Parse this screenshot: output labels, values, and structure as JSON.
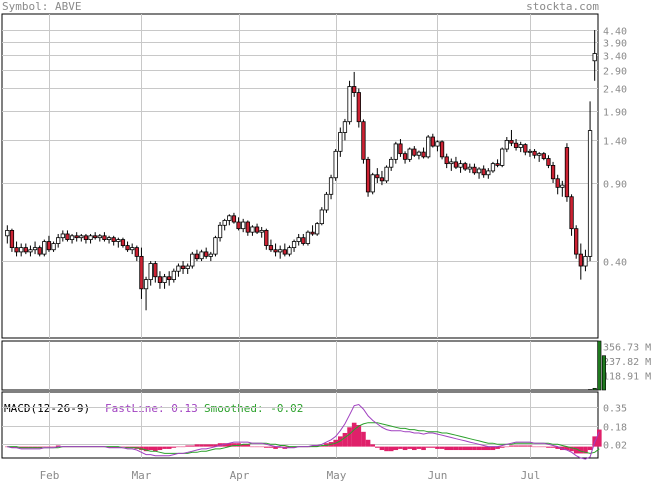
{
  "header": {
    "symbol_text": "Symbol: ABVE",
    "site": "stockta.com"
  },
  "macd_legend": {
    "title": "MACD(12-26-9)",
    "fast": "FastLine: 0.13",
    "smoothed": "Smoothed: -0.02"
  },
  "colors": {
    "up": "#ffffff",
    "down": "#cc2233",
    "wick": "#000000",
    "grid": "#c8c8c8",
    "volume": "#1f7a1f",
    "fast": "#a040c0",
    "smooth": "#2aa02a",
    "hist": "#e0206a"
  },
  "chart_data": [
    {
      "type": "candlestick",
      "scale": "log",
      "ylim": [
        0.18,
        5.2
      ],
      "yticks": [
        "4.40",
        "3.90",
        "3.40",
        "2.90",
        "2.40",
        "1.90",
        "1.40",
        "0.90",
        "0.40"
      ],
      "ytick_values": [
        4.4,
        3.9,
        3.4,
        2.9,
        2.4,
        1.9,
        1.4,
        0.9,
        0.4
      ],
      "xticks": [
        "Feb",
        "Mar",
        "Apr",
        "May",
        "Jun",
        "Jul"
      ],
      "xtick_index": [
        9,
        29,
        50,
        71,
        93,
        113
      ],
      "ohlc": [
        [
          0.52,
          0.58,
          0.48,
          0.55
        ],
        [
          0.55,
          0.56,
          0.44,
          0.46
        ],
        [
          0.46,
          0.49,
          0.42,
          0.44
        ],
        [
          0.44,
          0.48,
          0.42,
          0.46
        ],
        [
          0.46,
          0.48,
          0.43,
          0.44
        ],
        [
          0.44,
          0.47,
          0.42,
          0.45
        ],
        [
          0.45,
          0.49,
          0.43,
          0.46
        ],
        [
          0.46,
          0.47,
          0.42,
          0.43
        ],
        [
          0.43,
          0.5,
          0.42,
          0.49
        ],
        [
          0.49,
          0.52,
          0.44,
          0.45
        ],
        [
          0.45,
          0.49,
          0.44,
          0.48
        ],
        [
          0.48,
          0.53,
          0.46,
          0.51
        ],
        [
          0.51,
          0.55,
          0.49,
          0.53
        ],
        [
          0.53,
          0.55,
          0.49,
          0.5
        ],
        [
          0.5,
          0.53,
          0.48,
          0.52
        ],
        [
          0.52,
          0.54,
          0.49,
          0.51
        ],
        [
          0.51,
          0.53,
          0.49,
          0.52
        ],
        [
          0.52,
          0.53,
          0.48,
          0.5
        ],
        [
          0.5,
          0.53,
          0.48,
          0.52
        ],
        [
          0.52,
          0.54,
          0.5,
          0.51
        ],
        [
          0.51,
          0.53,
          0.49,
          0.52
        ],
        [
          0.52,
          0.54,
          0.49,
          0.5
        ],
        [
          0.5,
          0.52,
          0.48,
          0.51
        ],
        [
          0.51,
          0.52,
          0.47,
          0.49
        ],
        [
          0.49,
          0.51,
          0.46,
          0.5
        ],
        [
          0.5,
          0.51,
          0.46,
          0.47
        ],
        [
          0.47,
          0.49,
          0.44,
          0.45
        ],
        [
          0.45,
          0.48,
          0.43,
          0.46
        ],
        [
          0.46,
          0.47,
          0.4,
          0.42
        ],
        [
          0.42,
          0.46,
          0.27,
          0.3
        ],
        [
          0.3,
          0.34,
          0.24,
          0.33
        ],
        [
          0.33,
          0.4,
          0.31,
          0.39
        ],
        [
          0.39,
          0.4,
          0.32,
          0.34
        ],
        [
          0.34,
          0.36,
          0.3,
          0.32
        ],
        [
          0.32,
          0.35,
          0.3,
          0.34
        ],
        [
          0.34,
          0.36,
          0.31,
          0.33
        ],
        [
          0.33,
          0.37,
          0.32,
          0.36
        ],
        [
          0.36,
          0.39,
          0.34,
          0.38
        ],
        [
          0.38,
          0.4,
          0.35,
          0.37
        ],
        [
          0.37,
          0.39,
          0.35,
          0.38
        ],
        [
          0.38,
          0.44,
          0.37,
          0.43
        ],
        [
          0.43,
          0.45,
          0.4,
          0.41
        ],
        [
          0.41,
          0.45,
          0.4,
          0.44
        ],
        [
          0.44,
          0.46,
          0.41,
          0.42
        ],
        [
          0.42,
          0.44,
          0.4,
          0.43
        ],
        [
          0.43,
          0.52,
          0.42,
          0.51
        ],
        [
          0.51,
          0.6,
          0.49,
          0.58
        ],
        [
          0.58,
          0.62,
          0.55,
          0.61
        ],
        [
          0.61,
          0.65,
          0.58,
          0.64
        ],
        [
          0.64,
          0.66,
          0.59,
          0.6
        ],
        [
          0.6,
          0.63,
          0.55,
          0.56
        ],
        [
          0.56,
          0.62,
          0.54,
          0.6
        ],
        [
          0.6,
          0.61,
          0.52,
          0.54
        ],
        [
          0.54,
          0.58,
          0.52,
          0.57
        ],
        [
          0.57,
          0.59,
          0.53,
          0.54
        ],
        [
          0.54,
          0.57,
          0.51,
          0.55
        ],
        [
          0.55,
          0.56,
          0.45,
          0.47
        ],
        [
          0.47,
          0.5,
          0.44,
          0.45
        ],
        [
          0.45,
          0.48,
          0.42,
          0.44
        ],
        [
          0.44,
          0.47,
          0.41,
          0.45
        ],
        [
          0.45,
          0.48,
          0.42,
          0.43
        ],
        [
          0.43,
          0.47,
          0.42,
          0.46
        ],
        [
          0.46,
          0.5,
          0.44,
          0.49
        ],
        [
          0.49,
          0.53,
          0.47,
          0.51
        ],
        [
          0.51,
          0.53,
          0.47,
          0.48
        ],
        [
          0.48,
          0.55,
          0.47,
          0.54
        ],
        [
          0.54,
          0.58,
          0.52,
          0.53
        ],
        [
          0.53,
          0.6,
          0.52,
          0.59
        ],
        [
          0.59,
          0.7,
          0.58,
          0.68
        ],
        [
          0.68,
          0.82,
          0.66,
          0.8
        ],
        [
          0.8,
          0.98,
          0.76,
          0.95
        ],
        [
          0.95,
          1.28,
          0.92,
          1.25
        ],
        [
          1.25,
          1.6,
          1.18,
          1.52
        ],
        [
          1.52,
          1.75,
          1.4,
          1.7
        ],
        [
          1.7,
          2.6,
          1.65,
          2.45
        ],
        [
          2.45,
          2.85,
          2.2,
          2.3
        ],
        [
          2.3,
          2.4,
          1.6,
          1.7
        ],
        [
          1.7,
          1.74,
          1.1,
          1.15
        ],
        [
          1.15,
          1.18,
          0.78,
          0.82
        ],
        [
          0.82,
          1.0,
          0.8,
          0.98
        ],
        [
          0.98,
          1.05,
          0.9,
          0.95
        ],
        [
          0.95,
          1.02,
          0.88,
          0.92
        ],
        [
          0.92,
          1.08,
          0.9,
          1.06
        ],
        [
          1.06,
          1.18,
          1.02,
          1.15
        ],
        [
          1.15,
          1.38,
          1.1,
          1.35
        ],
        [
          1.35,
          1.42,
          1.18,
          1.22
        ],
        [
          1.22,
          1.25,
          1.1,
          1.15
        ],
        [
          1.15,
          1.3,
          1.12,
          1.28
        ],
        [
          1.28,
          1.32,
          1.18,
          1.2
        ],
        [
          1.2,
          1.26,
          1.15,
          1.24
        ],
        [
          1.24,
          1.3,
          1.16,
          1.18
        ],
        [
          1.18,
          1.48,
          1.16,
          1.45
        ],
        [
          1.45,
          1.5,
          1.3,
          1.32
        ],
        [
          1.32,
          1.4,
          1.25,
          1.38
        ],
        [
          1.38,
          1.4,
          1.15,
          1.18
        ],
        [
          1.18,
          1.22,
          1.05,
          1.1
        ],
        [
          1.1,
          1.16,
          1.02,
          1.12
        ],
        [
          1.12,
          1.18,
          1.04,
          1.06
        ],
        [
          1.06,
          1.14,
          1.0,
          1.1
        ],
        [
          1.1,
          1.12,
          1.02,
          1.04
        ],
        [
          1.04,
          1.1,
          1.0,
          1.06
        ],
        [
          1.06,
          1.1,
          0.98,
          1.0
        ],
        [
          1.0,
          1.06,
          0.94,
          1.04
        ],
        [
          1.04,
          1.08,
          0.95,
          0.98
        ],
        [
          0.98,
          1.05,
          0.94,
          1.02
        ],
        [
          1.02,
          1.12,
          1.0,
          1.1
        ],
        [
          1.1,
          1.15,
          1.06,
          1.08
        ],
        [
          1.08,
          1.3,
          1.06,
          1.28
        ],
        [
          1.28,
          1.45,
          1.24,
          1.4
        ],
        [
          1.4,
          1.56,
          1.32,
          1.36
        ],
        [
          1.36,
          1.42,
          1.26,
          1.3
        ],
        [
          1.3,
          1.38,
          1.24,
          1.34
        ],
        [
          1.34,
          1.36,
          1.2,
          1.24
        ],
        [
          1.24,
          1.28,
          1.18,
          1.25
        ],
        [
          1.25,
          1.28,
          1.16,
          1.2
        ],
        [
          1.2,
          1.24,
          1.12,
          1.22
        ],
        [
          1.22,
          1.24,
          1.14,
          1.16
        ],
        [
          1.16,
          1.2,
          1.05,
          1.08
        ],
        [
          1.08,
          1.12,
          0.9,
          0.94
        ],
        [
          0.94,
          0.98,
          0.8,
          0.86
        ],
        [
          0.86,
          0.92,
          0.78,
          0.88
        ],
        [
          1.3,
          1.36,
          0.74,
          0.78
        ],
        [
          0.78,
          0.8,
          0.52,
          0.56
        ],
        [
          0.56,
          0.58,
          0.41,
          0.43
        ],
        [
          0.43,
          0.48,
          0.33,
          0.38
        ],
        [
          0.38,
          0.45,
          0.36,
          0.42
        ],
        [
          0.42,
          2.1,
          0.4,
          1.55
        ],
        [
          3.2,
          4.4,
          2.6,
          3.45
        ]
      ]
    },
    {
      "type": "bar",
      "name_text": "volume",
      "yticks": [
        "356.73 M",
        "237.82 M",
        "118.91 M"
      ],
      "ytick_values": [
        356.73,
        237.82,
        118.91
      ],
      "ylim": [
        0,
        400
      ],
      "spikes": [
        [
          126,
          4
        ],
        [
          127,
          14
        ],
        [
          128,
          400
        ],
        [
          129,
          280
        ]
      ]
    },
    {
      "type": "line",
      "yticks": [
        "0.35",
        "0.18",
        "0.02"
      ],
      "ytick_values": [
        0.35,
        0.18,
        0.02
      ],
      "ylim": [
        -0.1,
        0.48
      ],
      "fast": [
        0,
        -0.01,
        -0.01,
        -0.02,
        -0.02,
        -0.02,
        -0.02,
        -0.02,
        -0.01,
        -0.01,
        -0.01,
        0,
        0,
        0,
        0,
        0,
        0,
        0,
        0,
        0,
        0,
        0,
        -0.01,
        -0.01,
        -0.01,
        -0.01,
        -0.02,
        -0.02,
        -0.03,
        -0.05,
        -0.07,
        -0.07,
        -0.08,
        -0.08,
        -0.08,
        -0.08,
        -0.07,
        -0.06,
        -0.06,
        -0.05,
        -0.04,
        -0.03,
        -0.02,
        -0.02,
        -0.01,
        0,
        0.01,
        0.02,
        0.03,
        0.04,
        0.04,
        0.04,
        0.04,
        0.03,
        0.03,
        0.03,
        0.02,
        0.01,
        0,
        0,
        -0.01,
        -0.01,
        -0.01,
        0,
        0,
        0,
        0.01,
        0.01,
        0.02,
        0.04,
        0.06,
        0.09,
        0.14,
        0.2,
        0.28,
        0.36,
        0.37,
        0.33,
        0.27,
        0.23,
        0.2,
        0.17,
        0.15,
        0.14,
        0.14,
        0.14,
        0.13,
        0.13,
        0.12,
        0.12,
        0.11,
        0.12,
        0.12,
        0.11,
        0.1,
        0.09,
        0.08,
        0.07,
        0.06,
        0.05,
        0.04,
        0.03,
        0.02,
        0.01,
        0,
        0,
        0,
        0.01,
        0.02,
        0.03,
        0.04,
        0.04,
        0.04,
        0.04,
        0.03,
        0.03,
        0.03,
        0.02,
        0.01,
        0,
        -0.02,
        -0.03,
        -0.05,
        -0.08,
        -0.1,
        -0.11,
        -0.09,
        0.04,
        0.13
      ],
      "smoothed": [
        0,
        0,
        0,
        -0.01,
        -0.01,
        -0.01,
        -0.01,
        -0.01,
        -0.01,
        -0.01,
        -0.01,
        -0.01,
        0,
        0,
        0,
        0,
        0,
        0,
        0,
        0,
        0,
        0,
        0,
        0,
        0,
        -0.01,
        -0.01,
        -0.01,
        -0.01,
        -0.02,
        -0.03,
        -0.04,
        -0.04,
        -0.05,
        -0.06,
        -0.06,
        -0.06,
        -0.06,
        -0.06,
        -0.06,
        -0.05,
        -0.05,
        -0.04,
        -0.04,
        -0.03,
        -0.02,
        -0.02,
        -0.01,
        0,
        0.01,
        0.01,
        0.02,
        0.02,
        0.03,
        0.03,
        0.03,
        0.03,
        0.02,
        0.02,
        0.01,
        0.01,
        0,
        0,
        0,
        0,
        0,
        0,
        0,
        0.01,
        0.01,
        0.02,
        0.03,
        0.05,
        0.08,
        0.11,
        0.15,
        0.18,
        0.2,
        0.21,
        0.21,
        0.21,
        0.2,
        0.19,
        0.18,
        0.17,
        0.16,
        0.16,
        0.15,
        0.15,
        0.14,
        0.14,
        0.13,
        0.13,
        0.13,
        0.12,
        0.12,
        0.11,
        0.1,
        0.09,
        0.08,
        0.07,
        0.06,
        0.05,
        0.04,
        0.03,
        0.03,
        0.02,
        0.02,
        0.02,
        0.02,
        0.03,
        0.03,
        0.03,
        0.03,
        0.03,
        0.03,
        0.03,
        0.03,
        0.02,
        0.02,
        0.01,
        0,
        -0.01,
        -0.02,
        -0.04,
        -0.05,
        -0.06,
        -0.05,
        -0.02
      ]
    }
  ]
}
